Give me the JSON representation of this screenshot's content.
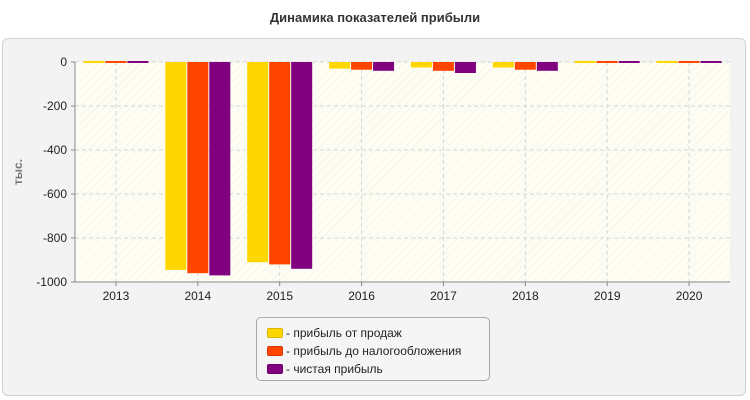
{
  "chart_data": {
    "type": "bar",
    "title": "Динамика показателей прибыли",
    "xlabel": "",
    "ylabel": "тыс.",
    "categories": [
      "2013",
      "2014",
      "2015",
      "2016",
      "2017",
      "2018",
      "2019",
      "2020"
    ],
    "series": [
      {
        "name": "прибыль от продаж",
        "color": "#ffd700",
        "values": [
          5,
          -945,
          -910,
          -30,
          -25,
          -25,
          5,
          5
        ]
      },
      {
        "name": "прибыль до налогообложения",
        "color": "#ff4500",
        "values": [
          3,
          -960,
          -920,
          -35,
          -40,
          -35,
          5,
          5
        ]
      },
      {
        "name": "чистая прибыль",
        "color": "#800080",
        "values": [
          3,
          -970,
          -940,
          -40,
          -50,
          -40,
          5,
          5
        ]
      }
    ],
    "ylim": [
      -1000,
      0
    ],
    "yticks": [
      0,
      -200,
      -400,
      -600,
      -800,
      -1000
    ],
    "grid": true,
    "legend_position": "bottom-center"
  },
  "legend": {
    "items": [
      {
        "label": "- прибыль от продаж"
      },
      {
        "label": "- прибыль до налогообложения"
      },
      {
        "label": "- чистая прибыль"
      }
    ]
  }
}
